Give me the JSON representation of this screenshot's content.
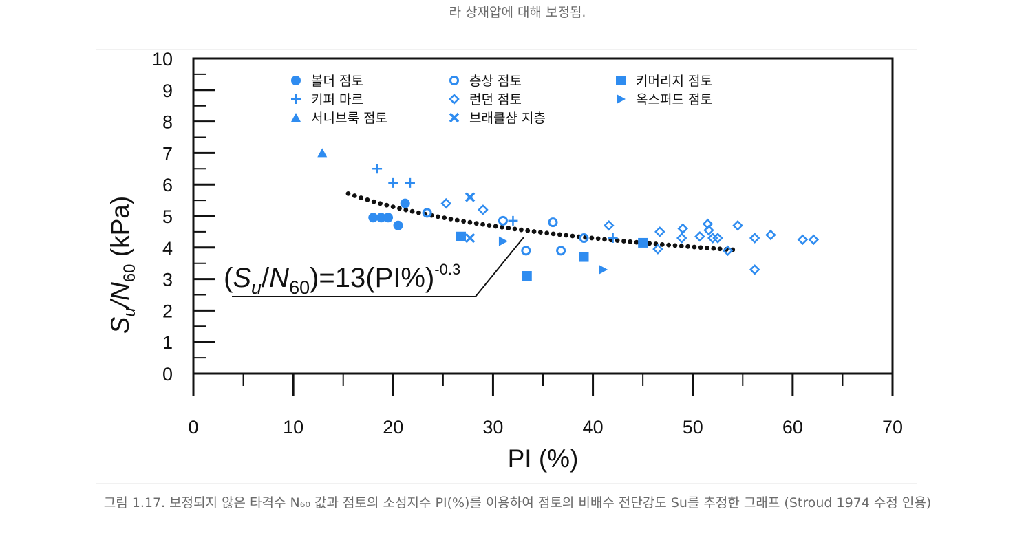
{
  "header": {
    "caption_text": "라 상재압에 대해 보정됨."
  },
  "figure": {
    "caption": "그림 1.17. 보정되지 않은 타격수 N₆₀ 값과 점토의 소성지수 PI(%)를 이용하여 점토의 비배수 전단강도 Su를 추정한 그래프 (Stroud 1974 수정 인용)"
  },
  "chart_data": {
    "type": "scatter",
    "xlabel": "PI (%)",
    "ylabel": {
      "base": "S",
      "sub1": "u",
      "mid": "/N",
      "sub2": "60",
      "tail": " (kPa)"
    },
    "xlim": [
      0,
      70
    ],
    "ylim": [
      0,
      10
    ],
    "x_ticks": [
      "0",
      "10",
      "20",
      "30",
      "40",
      "50",
      "60",
      "70"
    ],
    "y_ticks": [
      "0",
      "1",
      "2",
      "3",
      "4",
      "5",
      "6",
      "7",
      "8",
      "9",
      "10"
    ],
    "grid": false,
    "marker_color": "#2f8cf0",
    "series": [
      {
        "name": "볼더 점토",
        "marker": "filled-circle",
        "points": [
          [
            18,
            4.95
          ],
          [
            18.8,
            4.95
          ],
          [
            19.5,
            4.95
          ],
          [
            20.5,
            4.7
          ],
          [
            21.2,
            5.4
          ]
        ]
      },
      {
        "name": "층상 점토",
        "marker": "open-circle",
        "points": [
          [
            23.4,
            5.1
          ],
          [
            31,
            4.85
          ],
          [
            33.3,
            3.9
          ],
          [
            36,
            4.8
          ],
          [
            36.8,
            3.9
          ],
          [
            39.1,
            4.3
          ]
        ]
      },
      {
        "name": "키머리지 점토",
        "marker": "filled-square",
        "points": [
          [
            26.8,
            4.35
          ],
          [
            33.4,
            3.1
          ],
          [
            39.1,
            3.7
          ],
          [
            45,
            4.15
          ]
        ]
      },
      {
        "name": "키퍼 마르",
        "marker": "plus",
        "points": [
          [
            18.4,
            6.5
          ],
          [
            20,
            6.05
          ],
          [
            21.7,
            6.05
          ],
          [
            32,
            4.85
          ],
          [
            42,
            4.3
          ]
        ]
      },
      {
        "name": "런던 점토",
        "marker": "open-diamond",
        "points": [
          [
            25.3,
            5.4
          ],
          [
            29,
            5.2
          ],
          [
            41.6,
            4.7
          ],
          [
            46.5,
            3.95
          ],
          [
            46.7,
            4.5
          ],
          [
            48.9,
            4.3
          ],
          [
            49,
            4.6
          ],
          [
            50.7,
            4.35
          ],
          [
            51.5,
            4.75
          ],
          [
            51.6,
            4.55
          ],
          [
            52,
            4.3
          ],
          [
            52.5,
            4.3
          ],
          [
            53.5,
            3.9
          ],
          [
            54.5,
            4.7
          ],
          [
            56.2,
            3.3
          ],
          [
            56.2,
            4.3
          ],
          [
            57.8,
            4.4
          ],
          [
            61,
            4.25
          ],
          [
            62.1,
            4.25
          ]
        ]
      },
      {
        "name": "옥스퍼드 점토",
        "marker": "filled-triangle-right",
        "points": [
          [
            31,
            4.2
          ],
          [
            41,
            3.3
          ]
        ]
      },
      {
        "name": "서니브룩 점토",
        "marker": "filled-triangle-up",
        "points": [
          [
            12.9,
            7
          ]
        ]
      },
      {
        "name": "브래클샴 지층",
        "marker": "x",
        "points": [
          [
            27.7,
            5.6
          ],
          [
            27.7,
            4.3
          ]
        ]
      }
    ],
    "fit_curve": {
      "label": {
        "prefix": "(",
        "s": "S",
        "u": "u",
        "slash": "/",
        "n": "N",
        "sixty": "60",
        "rest": ")=13(PI%)",
        "exp": "-0.3"
      },
      "coefficient": 13,
      "exponent": -0.3,
      "x_range": [
        15.5,
        54
      ],
      "style": "dotted"
    }
  }
}
